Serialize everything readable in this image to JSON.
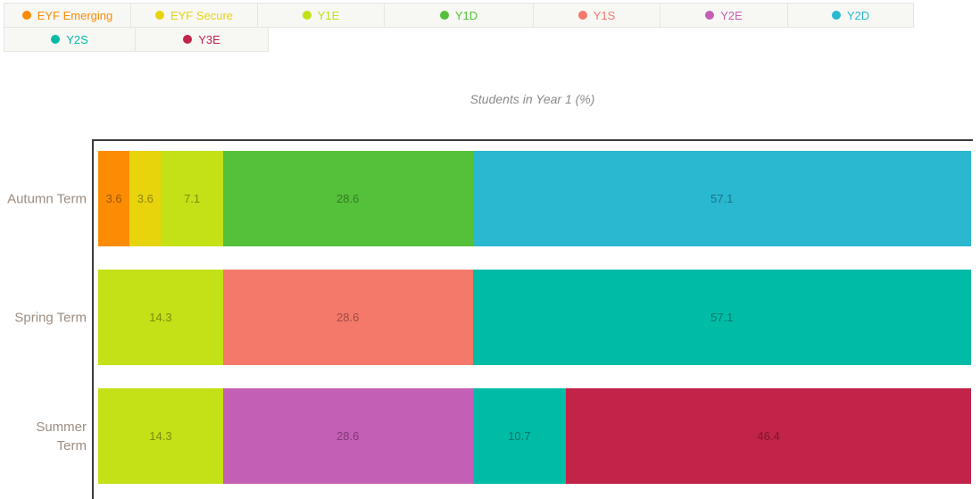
{
  "title": "Students in Year 1 (%)",
  "chart_data": {
    "type": "bar",
    "stacked": true,
    "orientation": "horizontal",
    "title": "Students in Year 1 (%)",
    "xlim": [
      0,
      100
    ],
    "categories": [
      "Autumn Term",
      "Spring Term",
      "Summer Term"
    ],
    "category_display_lines": [
      [
        "Autumn Term"
      ],
      [
        "Spring Term"
      ],
      [
        "Summer",
        "Term"
      ]
    ],
    "series": [
      {
        "name": "EYF Emerging",
        "color": "#FB8C04",
        "values": [
          3.6,
          0,
          0
        ]
      },
      {
        "name": "EYF Secure",
        "color": "#E7D40D",
        "values": [
          3.6,
          0,
          0
        ]
      },
      {
        "name": "Y1E",
        "color": "#C4E016",
        "values": [
          7.1,
          14.3,
          14.3
        ]
      },
      {
        "name": "Y1D",
        "color": "#55C13A",
        "values": [
          28.6,
          0,
          0
        ]
      },
      {
        "name": "Y1S",
        "color": "#F4796B",
        "values": [
          0,
          28.6,
          0
        ]
      },
      {
        "name": "Y2E",
        "color": "#C45FB6",
        "values": [
          0,
          0,
          28.6
        ]
      },
      {
        "name": "Y2D",
        "color": "#2AB8D1",
        "values": [
          57.1,
          0,
          0
        ]
      },
      {
        "name": "Y2S",
        "color": "#00BCA7",
        "values": [
          0,
          57.1,
          10.7
        ]
      },
      {
        "name": "Y3E",
        "color": "#C22348",
        "values": [
          0,
          0,
          46.4
        ]
      }
    ],
    "legend_position": "top-left",
    "grid": false
  },
  "style_colors": {
    "axis_line": "#3E3A39",
    "category_label": "#9C8D81",
    "title_text": "#8A8A8A",
    "legend_cell_bg": "#F7F7F4",
    "legend_cell_border": "#E5E5E1"
  }
}
